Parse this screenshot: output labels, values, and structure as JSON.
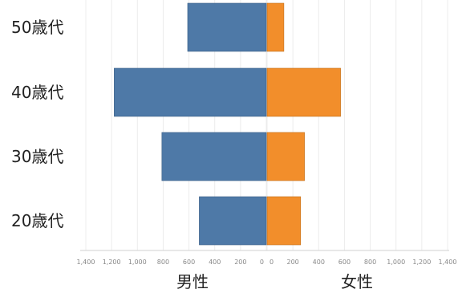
{
  "chart_data": {
    "type": "bar",
    "orientation": "horizontal-butterfly",
    "categories": [
      "50歳代",
      "40歳代",
      "30歳代",
      "20歳代"
    ],
    "series": [
      {
        "name": "男性",
        "values": [
          610,
          1180,
          810,
          520
        ]
      },
      {
        "name": "女性",
        "values": [
          130,
          570,
          290,
          260
        ]
      }
    ],
    "colors": {
      "男性": "#4e79a7",
      "女性": "#f28e2b"
    },
    "x_ticks_left": [
      "1,400",
      "1,200",
      "1,000",
      "800",
      "600",
      "400",
      "200",
      "0"
    ],
    "x_ticks_right": [
      "0",
      "200",
      "400",
      "600",
      "800",
      "1,000",
      "1,200",
      "1,400"
    ],
    "xlabel_left": "男性",
    "xlabel_right": "女性",
    "xlim": [
      0,
      1400
    ],
    "grid": true
  }
}
